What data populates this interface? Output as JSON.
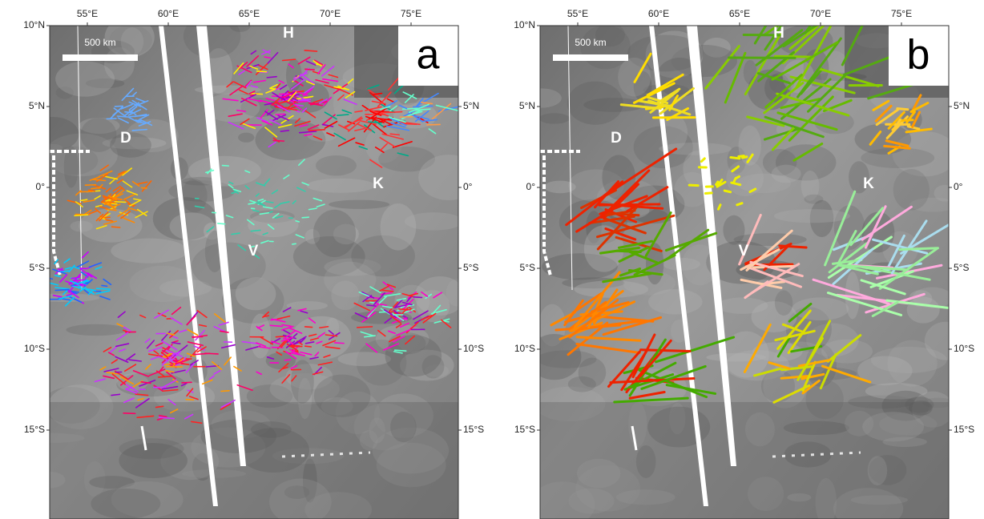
{
  "panels": [
    {
      "label": "a",
      "top_labels": [
        "55°E",
        "60°E",
        "65°E",
        "70°E",
        "75°E"
      ],
      "left_labels": [
        "10°N",
        "5°N",
        "0°",
        "5°S",
        "10°S",
        "15°S"
      ],
      "right_labels": [
        "5°N",
        "0°",
        "5°S",
        "10°S",
        "15°S"
      ],
      "features": [
        "H",
        "D",
        "K",
        "V"
      ],
      "scale_bar": "500 km"
    },
    {
      "label": "b",
      "top_labels": [
        "55°E",
        "60°E",
        "65°E",
        "70°E",
        "75°E"
      ],
      "left_labels": [
        "10°N",
        "5°N",
        "0°",
        "5°S",
        "10°S",
        "15°S"
      ],
      "right_labels": [
        "5°N",
        "0°",
        "5°S",
        "10°S",
        "15°S"
      ],
      "features": [
        "H",
        "D",
        "K",
        "V"
      ],
      "scale_bar": "500 km"
    }
  ]
}
